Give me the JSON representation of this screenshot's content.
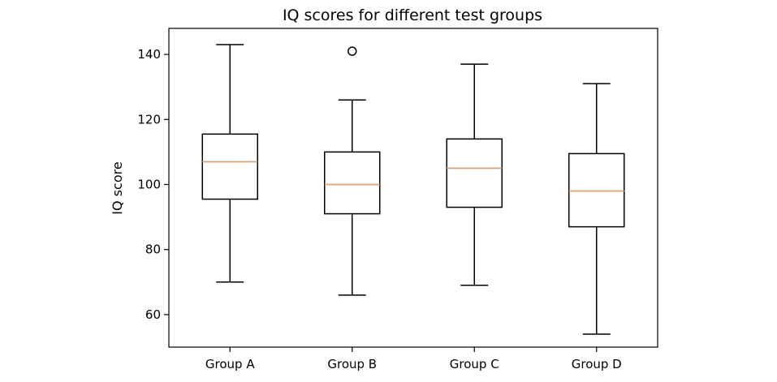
{
  "chart_data": {
    "type": "box",
    "title": "IQ scores for different test groups",
    "xlabel": "",
    "ylabel": "IQ score",
    "ylim": [
      50,
      148
    ],
    "yticks": [
      60,
      80,
      100,
      120,
      140
    ],
    "grid": false,
    "categories": [
      "Group A",
      "Group B",
      "Group C",
      "Group D"
    ],
    "boxes": [
      {
        "category": "Group A",
        "whisker_low": 70,
        "q1": 95.5,
        "median": 107,
        "q3": 115.5,
        "whisker_high": 143,
        "outliers": []
      },
      {
        "category": "Group B",
        "whisker_low": 66,
        "q1": 91,
        "median": 100,
        "q3": 110,
        "whisker_high": 126,
        "outliers": [
          141
        ]
      },
      {
        "category": "Group C",
        "whisker_low": 69,
        "q1": 93,
        "median": 105,
        "q3": 114,
        "whisker_high": 137,
        "outliers": []
      },
      {
        "category": "Group D",
        "whisker_low": 54,
        "q1": 87,
        "median": 98,
        "q3": 109.5,
        "whisker_high": 131,
        "outliers": []
      }
    ],
    "colors": {
      "box": "#000000",
      "median": "#d9a47c",
      "outlier": "#000000",
      "frame": "#000000"
    }
  }
}
